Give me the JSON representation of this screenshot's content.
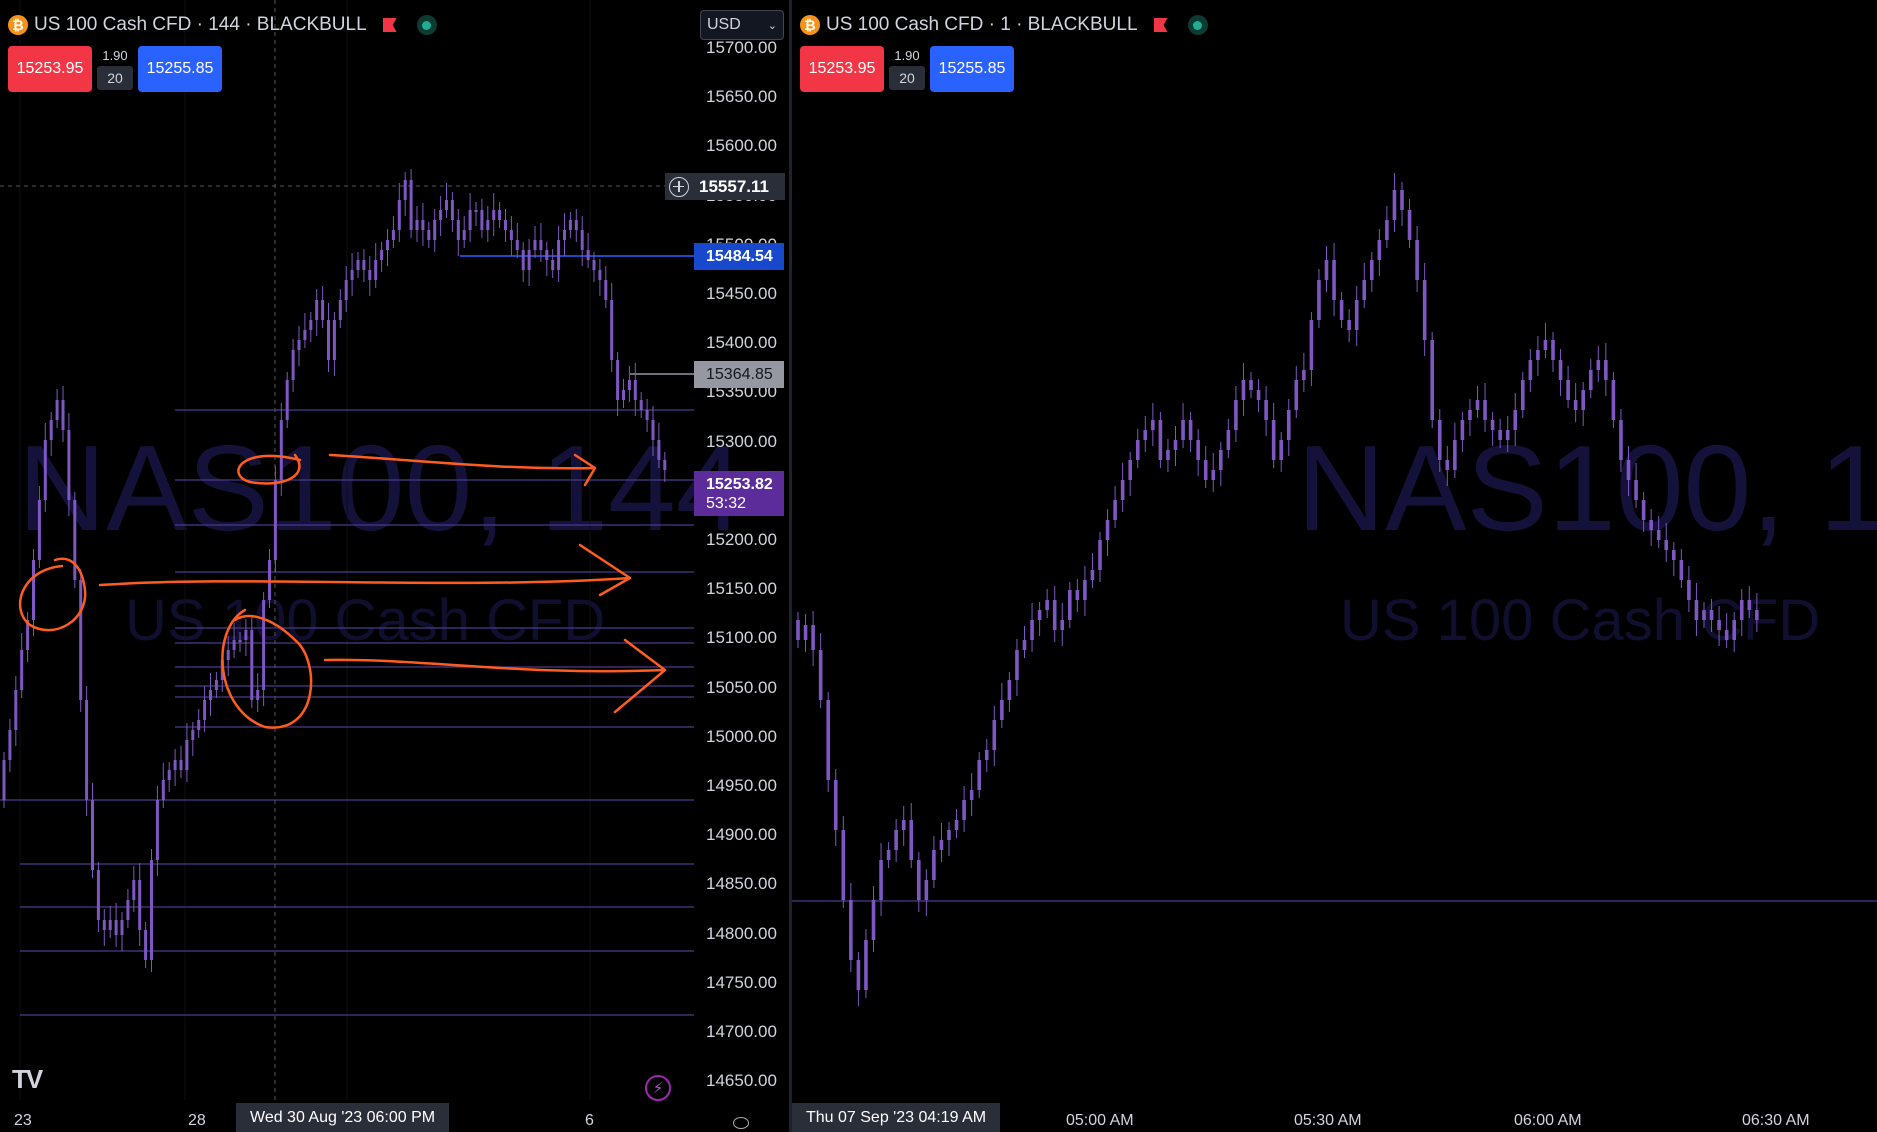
{
  "left_chart": {
    "title": "US 100 Cash CFD · 144 · BLACKBULL",
    "coin_glyph": "₿",
    "sell_price": "15253.95",
    "buy_price": "15255.85",
    "spread": "1.90",
    "quantity": "20",
    "currency": "USD",
    "watermark_symbol": "NAS100, 144",
    "watermark_name": "US 100 Cash CFD",
    "price_labels": [
      "15700.00",
      "15650.00",
      "15600.00",
      "15550.00",
      "15500.00",
      "15450.00",
      "15400.00",
      "15350.00",
      "15300.00",
      "15250.00",
      "15200.00",
      "15150.00",
      "15100.00",
      "15050.00",
      "15000.00",
      "14950.00",
      "14900.00",
      "14850.00",
      "14800.00",
      "14750.00",
      "14700.00",
      "14650.00"
    ],
    "crosshair_price": "15557.11",
    "blue_line_price": "15484.54",
    "grey_line_price": "15364.85",
    "current_price": "15253.82",
    "countdown": "53:32",
    "time_labels": [
      "23",
      "28",
      "6"
    ],
    "crosshair_time": "Wed 30 Aug '23   06:00 PM",
    "logo": "TV",
    "bolt_glyph": "⚡"
  },
  "right_chart": {
    "title": "US 100 Cash CFD · 1 · BLACKBULL",
    "coin_glyph": "₿",
    "sell_price": "15253.95",
    "buy_price": "15255.85",
    "spread": "1.90",
    "quantity": "20",
    "watermark_symbol": "NAS100, 1",
    "watermark_name": "US 100 Cash CFD",
    "time_labels": [
      "05:00 AM",
      "05:30 AM",
      "06:00 AM",
      "06:30 AM"
    ],
    "crosshair_time": "Thu 07 Sep '23   04:19 AM"
  },
  "colors": {
    "candle": "#7e57c2",
    "annotation": "#ff5d1f",
    "blue_tag": "#1848cc",
    "current_tag": "#5b2c9a"
  }
}
